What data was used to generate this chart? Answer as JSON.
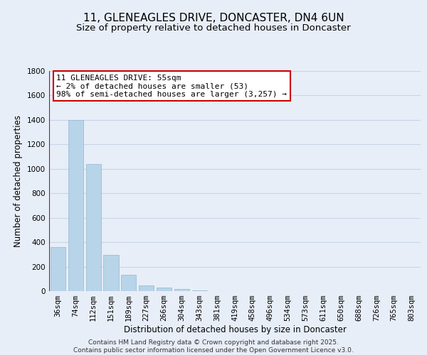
{
  "title": "11, GLENEAGLES DRIVE, DONCASTER, DN4 6UN",
  "subtitle": "Size of property relative to detached houses in Doncaster",
  "xlabel": "Distribution of detached houses by size in Doncaster",
  "ylabel": "Number of detached properties",
  "bar_labels": [
    "36sqm",
    "74sqm",
    "112sqm",
    "151sqm",
    "189sqm",
    "227sqm",
    "266sqm",
    "304sqm",
    "343sqm",
    "381sqm",
    "419sqm",
    "458sqm",
    "496sqm",
    "534sqm",
    "573sqm",
    "611sqm",
    "650sqm",
    "688sqm",
    "726sqm",
    "765sqm",
    "803sqm"
  ],
  "bar_values": [
    360,
    1400,
    1040,
    295,
    135,
    45,
    30,
    20,
    5,
    0,
    0,
    0,
    0,
    0,
    0,
    0,
    0,
    0,
    0,
    0,
    0
  ],
  "bar_color": "#b8d4e8",
  "bar_edge_color": "#90b8d0",
  "property_line_color": "#cc0000",
  "ylim": [
    0,
    1800
  ],
  "yticks": [
    0,
    200,
    400,
    600,
    800,
    1000,
    1200,
    1400,
    1600,
    1800
  ],
  "annotation_title": "11 GLENEAGLES DRIVE: 55sqm",
  "annotation_line1": "← 2% of detached houses are smaller (53)",
  "annotation_line2": "98% of semi-detached houses are larger (3,257) →",
  "annotation_box_color": "#ffffff",
  "annotation_box_edge_color": "#cc0000",
  "footer_line1": "Contains HM Land Registry data © Crown copyright and database right 2025.",
  "footer_line2": "Contains public sector information licensed under the Open Government Licence v3.0.",
  "bg_color": "#e8eef8",
  "grid_color": "#c8d4e8",
  "title_fontsize": 11,
  "subtitle_fontsize": 9.5,
  "axis_label_fontsize": 8.5,
  "tick_fontsize": 7.5,
  "annotation_fontsize": 8,
  "footer_fontsize": 6.5
}
